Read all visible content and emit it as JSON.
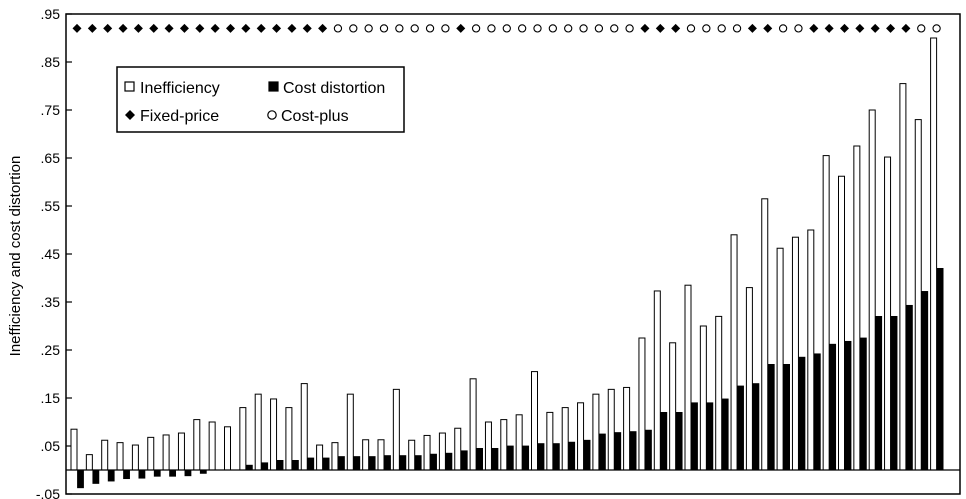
{
  "chart_data": {
    "type": "bar",
    "ylabel": "Inefficiency and cost distortion",
    "ylim": [
      -0.05,
      0.95
    ],
    "yticks": [
      {
        "value": 0.95,
        "label": ".95"
      },
      {
        "value": 0.85,
        "label": ".85"
      },
      {
        "value": 0.75,
        "label": ".75"
      },
      {
        "value": 0.65,
        "label": ".65"
      },
      {
        "value": 0.55,
        "label": ".55"
      },
      {
        "value": 0.45,
        "label": ".45"
      },
      {
        "value": 0.35,
        "label": ".35"
      },
      {
        "value": 0.25,
        "label": ".25"
      },
      {
        "value": 0.15,
        "label": ".15"
      },
      {
        "value": 0.05,
        "label": ".05"
      },
      {
        "value": -0.05,
        "label": "-.05"
      }
    ],
    "grid": false,
    "legend_position": "top-left",
    "series": [
      {
        "name": "Inefficiency",
        "marker": "open-square",
        "color": "#ffffff",
        "values": [
          0.085,
          0.032,
          0.062,
          0.057,
          0.052,
          0.068,
          0.073,
          0.077,
          0.105,
          0.1,
          0.09,
          0.13,
          0.158,
          0.148,
          0.13,
          0.18,
          0.052,
          0.057,
          0.158,
          0.063,
          0.063,
          0.168,
          0.062,
          0.072,
          0.077,
          0.087,
          0.19,
          0.1,
          0.105,
          0.115,
          0.205,
          0.12,
          0.13,
          0.14,
          0.158,
          0.168,
          0.172,
          0.275,
          0.373,
          0.265,
          0.385,
          0.3,
          0.32,
          0.49,
          0.38,
          0.565,
          0.462,
          0.485,
          0.5,
          0.655,
          0.612,
          0.675,
          0.75,
          0.652,
          0.805,
          0.73,
          0.9
        ]
      },
      {
        "name": "Cost distortion",
        "marker": "filled-square",
        "color": "#000000",
        "values": [
          -0.037,
          -0.028,
          -0.023,
          -0.018,
          -0.017,
          -0.013,
          -0.013,
          -0.012,
          -0.007,
          0.0,
          0.0,
          0.01,
          0.015,
          0.02,
          0.02,
          0.025,
          0.025,
          0.028,
          0.028,
          0.028,
          0.03,
          0.03,
          0.03,
          0.033,
          0.035,
          0.04,
          0.045,
          0.045,
          0.05,
          0.05,
          0.055,
          0.055,
          0.058,
          0.062,
          0.075,
          0.078,
          0.08,
          0.083,
          0.12,
          0.12,
          0.14,
          0.14,
          0.148,
          0.175,
          0.18,
          0.22,
          0.22,
          0.235,
          0.242,
          0.262,
          0.268,
          0.275,
          0.32,
          0.32,
          0.343,
          0.372,
          0.42
        ]
      }
    ],
    "contract_markers": {
      "legend": [
        {
          "name": "Fixed-price",
          "symbol": "filled-diamond"
        },
        {
          "name": "Cost-plus",
          "symbol": "open-circle"
        }
      ],
      "y": 0.92,
      "sequence": [
        "F",
        "F",
        "F",
        "F",
        "F",
        "F",
        "F",
        "F",
        "F",
        "F",
        "F",
        "F",
        "F",
        "F",
        "F",
        "F",
        "F",
        "C",
        "C",
        "C",
        "C",
        "C",
        "C",
        "C",
        "C",
        "F",
        "C",
        "C",
        "C",
        "C",
        "C",
        "C",
        "C",
        "C",
        "C",
        "C",
        "C",
        "F",
        "F",
        "F",
        "C",
        "C",
        "C",
        "C",
        "F",
        "F",
        "C",
        "C",
        "F",
        "F",
        "F",
        "F",
        "F",
        "F",
        "F",
        "C",
        "C"
      ]
    }
  }
}
